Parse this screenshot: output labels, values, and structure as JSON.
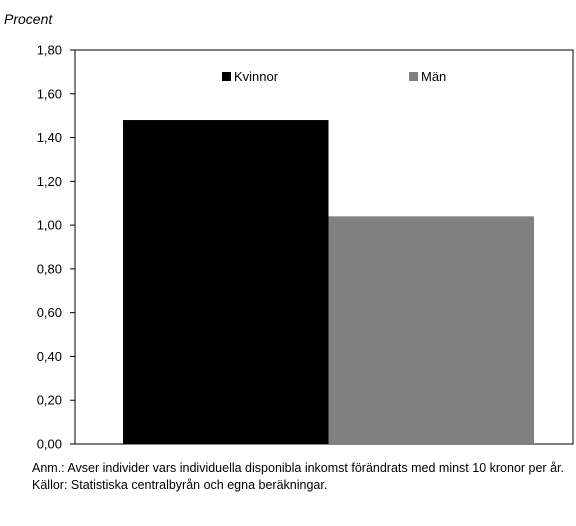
{
  "chart_data": {
    "type": "bar",
    "ylabel": "Procent",
    "xlabel": "",
    "title": "",
    "ylim": [
      0,
      1.8
    ],
    "ytick_labels": [
      "0,00",
      "0,20",
      "0,40",
      "0,60",
      "0,80",
      "1,00",
      "1,20",
      "1,40",
      "1,60",
      "1,80"
    ],
    "ytick_values": [
      0,
      0.2,
      0.4,
      0.6,
      0.8,
      1.0,
      1.2,
      1.4,
      1.6,
      1.8
    ],
    "series": [
      {
        "name": "Kvinnor",
        "values": [
          1.48
        ],
        "color": "#000000"
      },
      {
        "name": "Män",
        "values": [
          1.04
        ],
        "color": "#808080"
      }
    ],
    "legend_position": "top",
    "grid": false
  },
  "notes": {
    "anm": "Anm.: Avser individer vars individuella disponibla inkomst förändrats med minst 10 kronor per år.",
    "kallor": "Källor: Statistiska centralbyrån och egna beräkningar."
  }
}
